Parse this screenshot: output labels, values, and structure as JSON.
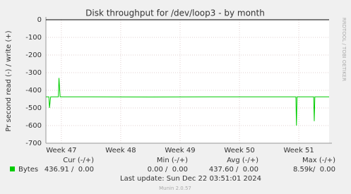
{
  "chart_data": {
    "type": "line",
    "title": "Disk throughput for /dev/loop3 - by month",
    "y_label": "Pr second read (-) / write (+)",
    "side_label": "RRDTOOL / TOBI OETIKER",
    "xlim": [
      46.74,
      51.51
    ],
    "xticks": [
      {
        "value": 47,
        "label": "Week 47"
      },
      {
        "value": 48,
        "label": "Week 48"
      },
      {
        "value": 49,
        "label": "Week 49"
      },
      {
        "value": 50,
        "label": "Week 50"
      },
      {
        "value": 51,
        "label": "Week 51"
      }
    ],
    "ylim": [
      -700,
      0
    ],
    "yticks": [
      -700,
      -600,
      -500,
      -400,
      -300,
      -200,
      -100,
      0
    ],
    "grid": true,
    "x": [
      46.74,
      46.79,
      46.8,
      46.82,
      46.95,
      46.96,
      46.98,
      47.5,
      48.5,
      49.5,
      50.5,
      50.95,
      50.96,
      50.97,
      51.25,
      51.26,
      51.27,
      51.51
    ],
    "series": [
      {
        "name": "Bytes",
        "color": "#00cc00",
        "values": [
          -437,
          -437,
          -500,
          -437,
          -437,
          -330,
          -437,
          -437,
          -438,
          -437,
          -437,
          -437,
          -600,
          -437,
          -437,
          -575,
          -437,
          -437
        ]
      }
    ],
    "legend_table": {
      "headers": [
        "Cur (-/+)",
        "Min (-/+)",
        "Avg (-/+)",
        "Max (-/+)"
      ],
      "row": [
        "436.91 /  0.00",
        "0.00 /  0.00",
        "437.60 /  0.00",
        "8.59k/  0.00"
      ]
    },
    "last_update": "Last update: Sun Dec 22 03:51:01 2024",
    "footer": "Munin 2.0.57"
  }
}
